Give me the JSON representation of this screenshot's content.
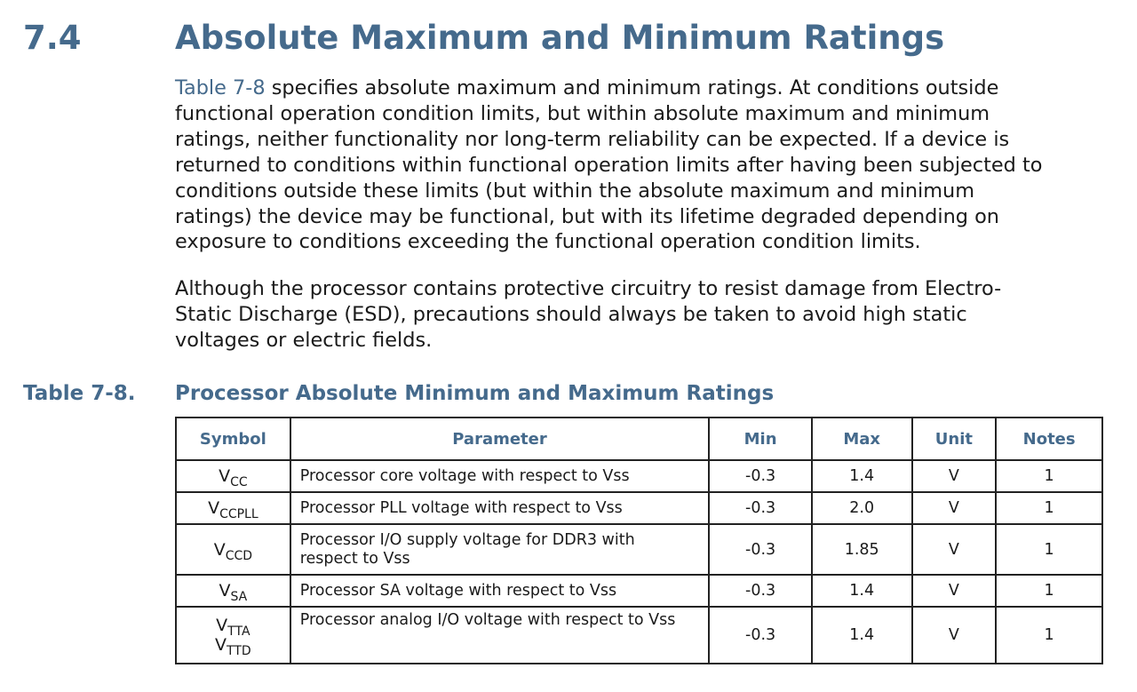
{
  "section": {
    "number": "7.4",
    "title": "Absolute Maximum and Minimum Ratings"
  },
  "paragraph1": {
    "xref": "Table 7-8",
    "lines": [
      " specifies absolute maximum and minimum ratings. At conditions outside",
      "functional operation condition limits, but within absolute maximum and minimum",
      "ratings, neither functionality nor long-term reliability can be expected. If a device is",
      "returned to conditions within functional operation limits after having been subjected to",
      "conditions outside these limits (but within the absolute maximum and minimum",
      "ratings) the device may be functional, but with its lifetime degraded depending on",
      "exposure to conditions exceeding the functional operation condition limits."
    ]
  },
  "paragraph2": {
    "lines": [
      "Although the processor contains protective circuitry to resist damage from Electro-",
      "Static Discharge (ESD), precautions should always be taken to avoid high static",
      "voltages or electric fields."
    ]
  },
  "table": {
    "caption_label": "Table 7-8.",
    "caption_title": "Processor Absolute Minimum and Maximum Ratings",
    "headers": {
      "symbol": "Symbol",
      "parameter": "Parameter",
      "min": "Min",
      "max": "Max",
      "unit": "Unit",
      "notes": "Notes"
    },
    "rows": [
      {
        "symbol_base": "V",
        "symbol_sub": "CC",
        "parameter": "Processor core voltage with respect to Vss",
        "min": "-0.3",
        "max": "1.4",
        "unit": "V",
        "notes": "1"
      },
      {
        "symbol_base": "V",
        "symbol_sub": "CCPLL",
        "parameter": "Processor PLL voltage with respect to Vss",
        "min": "-0.3",
        "max": "2.0",
        "unit": "V",
        "notes": "1"
      },
      {
        "symbol_base": "V",
        "symbol_sub": "CCD",
        "parameter_line1": "Processor I/O supply voltage for DDR3 with",
        "parameter_line2": "respect to Vss",
        "min": "-0.3",
        "max": "1.85",
        "unit": "V",
        "notes": "1"
      },
      {
        "symbol_base": "V",
        "symbol_sub": "SA",
        "parameter": "Processor SA voltage with respect to Vss",
        "min": "-0.3",
        "max": "1.4",
        "unit": "V",
        "notes": "1"
      },
      {
        "symbol_base": "V",
        "symbol_sub": "TTA",
        "symbol2_base": "V",
        "symbol2_sub": "TTD",
        "parameter": "Processor analog I/O voltage with respect to Vss",
        "min": "-0.3",
        "max": "1.4",
        "unit": "V",
        "notes": "1"
      }
    ]
  },
  "colors": {
    "heading": "#456a8c",
    "text": "#1a1a1a",
    "border": "#222222"
  }
}
